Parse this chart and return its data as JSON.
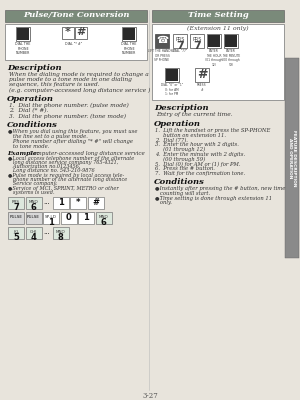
{
  "page_bg": "#e8e4dc",
  "header_bg": "#7a8a7a",
  "sidebar_bg": "#8a8a8a",
  "white": "#ffffff",
  "border_color": "#999999",
  "text_dark": "#111111",
  "text_med": "#333333",
  "icon_dark": "#444444",
  "icon_fill": "#555555",
  "page_number": "3-27",
  "left_title": "Pulse/Tone Conversion",
  "right_title": "Time Setting",
  "ext_note": "(Extension 11 only)",
  "left_desc_title": "Description",
  "left_desc_lines": [
    "When the dialing mode is required to change a",
    "pulse mode to a tone mode in one dialing",
    "sequence, this feature is used.",
    "(e.g. computer-accessed long distance service )"
  ],
  "left_op_title": "Operation",
  "left_op_lines": [
    "1.  Dial the phone number. (pulse mode)",
    "2.  Dial (* #).",
    "3.  Dial the phone number. (tone mode)"
  ],
  "left_cond_title": "Conditions",
  "left_cond_lines": [
    "●When you dial using this feature, you must use",
    "   the line set to a pulse mode.",
    "   Phone number after dialing \"* #\" will change",
    "   to tone mode."
  ],
  "left_ex_label": "Example:",
  "left_ex_title": "Computer-accessed long distance service",
  "left_ex_lines": [
    "●Local access telephone number of the alternate",
    "   long distance service company 765-4321,",
    "   Authorization no.0123456,",
    "   Long distance no. 543-210-9876",
    "●Pulse mode is required by local access tele-",
    "   phone number of the alternate long distance",
    "   Service company.",
    "●Service of MCI, SPRINT, METRO or other",
    "   systems is used."
  ],
  "right_desc_title": "Description",
  "right_desc_line": "Entry of the current time.",
  "right_op_title": "Operation",
  "right_op_lines": [
    "1.  Lift the handset or press the SP-PHONE",
    "     button on extension 11.",
    "2.  Dial (77).",
    "3.  Enter the hour with 2 digits.",
    "     (01 through 12)",
    "4.  Enter the minute with 2 digits.",
    "     (00 through 59)",
    "5.  Dial (0) for AM or (1) for PM.",
    "6.  Press the # button.",
    "7.  Wait for the confirmation tone."
  ],
  "right_cond_title": "Conditions",
  "right_cond_lines": [
    "●Instantly after pressing the # button, new time",
    "   counting will start.",
    "●Time setting is done through extension 11",
    "   only."
  ],
  "sidebar_text": "FEATURE DESCRIPTION\nAND OPERATION",
  "keypad_rows": 4,
  "keypad_cols": 3,
  "keypad_cell_fill": "#2a2a2a",
  "box_bg": "#f0ece4"
}
